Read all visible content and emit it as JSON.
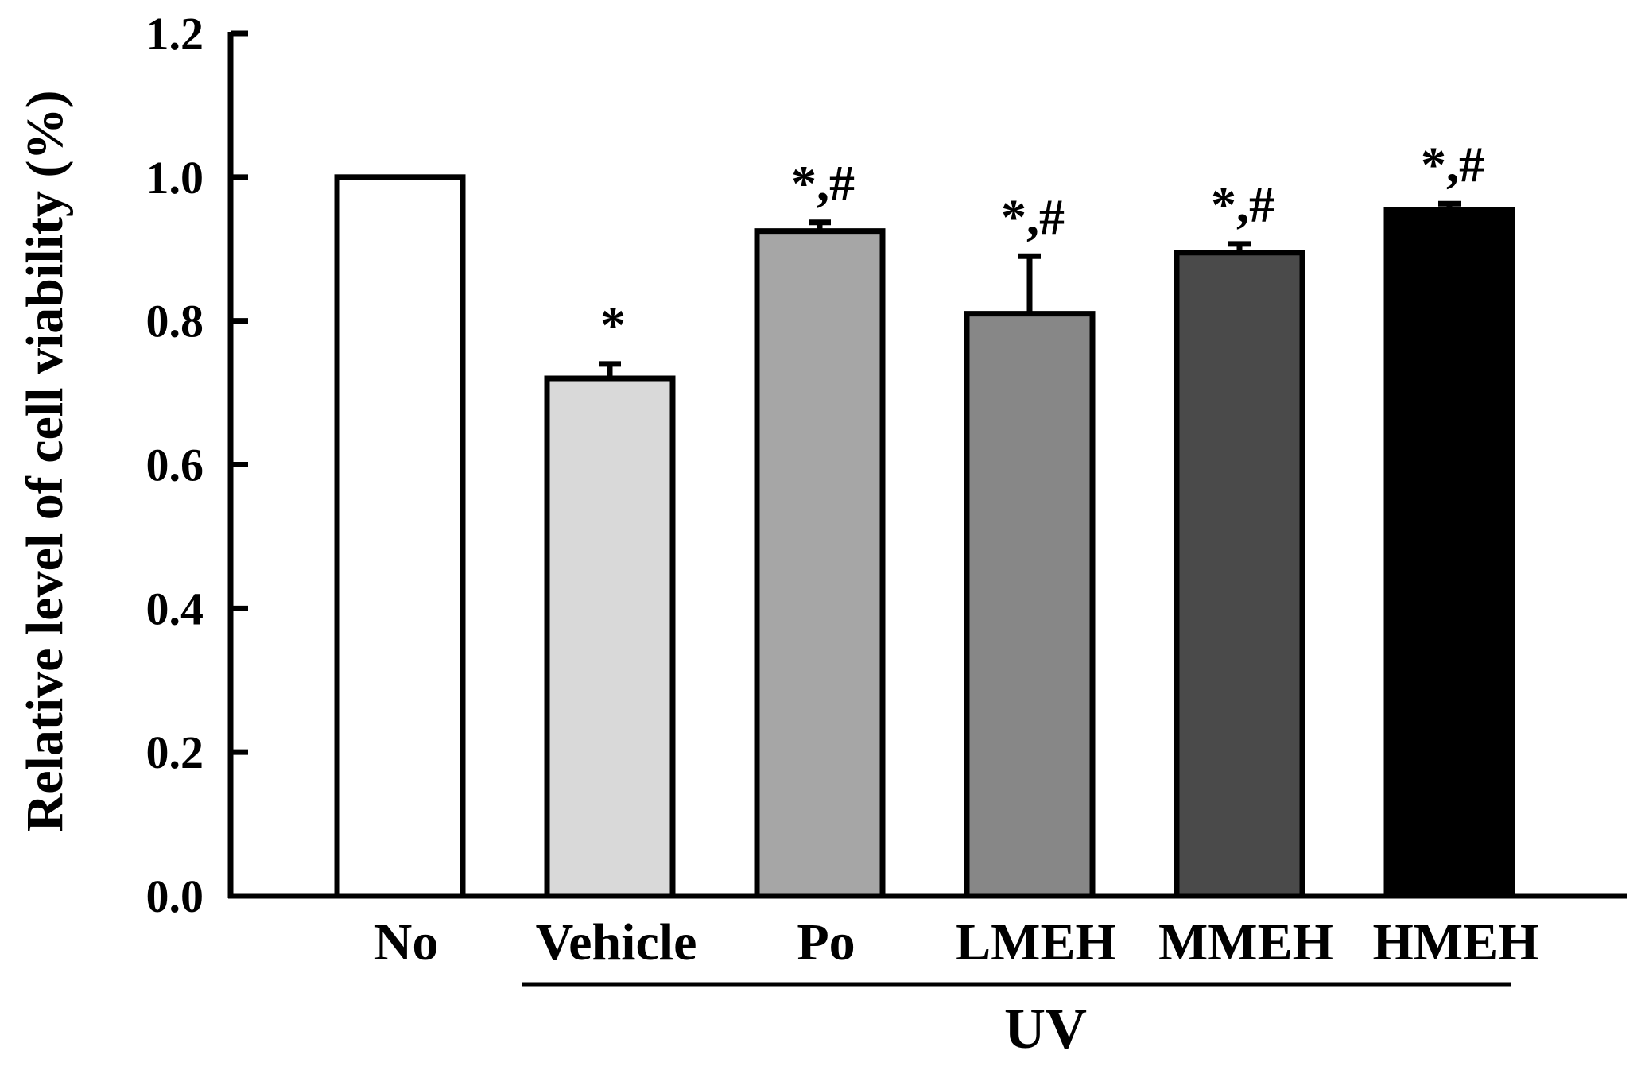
{
  "chart_data": {
    "type": "bar",
    "title": "",
    "ylabel": "Relative level of cell viability (%)",
    "xlabel": "",
    "ylim": [
      0,
      1.2
    ],
    "yticks": [
      "0.0",
      "0.2",
      "0.4",
      "0.6",
      "0.8",
      "1.0",
      "1.2"
    ],
    "ytick_values": [
      0,
      0.2,
      0.4,
      0.6,
      0.8,
      1.0,
      1.2
    ],
    "categories": [
      "No",
      "Vehicle",
      "Po",
      "LMEH",
      "MMEH",
      "HMEH"
    ],
    "values": [
      1.0,
      0.72,
      0.925,
      0.81,
      0.895,
      0.955
    ],
    "errors": [
      0,
      0.02,
      0.012,
      0.08,
      0.012,
      0.008
    ],
    "annotations": [
      "",
      "*",
      "*,#",
      "*,#",
      "*,#",
      "*,#"
    ],
    "fills": [
      "#ffffff",
      "#d9d9d9",
      "#a6a6a6",
      "#878787",
      "#4a4a4a",
      "#000000"
    ],
    "group_bracket": {
      "label": "UV",
      "from": "Vehicle",
      "to": "HMEH"
    },
    "grid": false,
    "legend": "none"
  }
}
